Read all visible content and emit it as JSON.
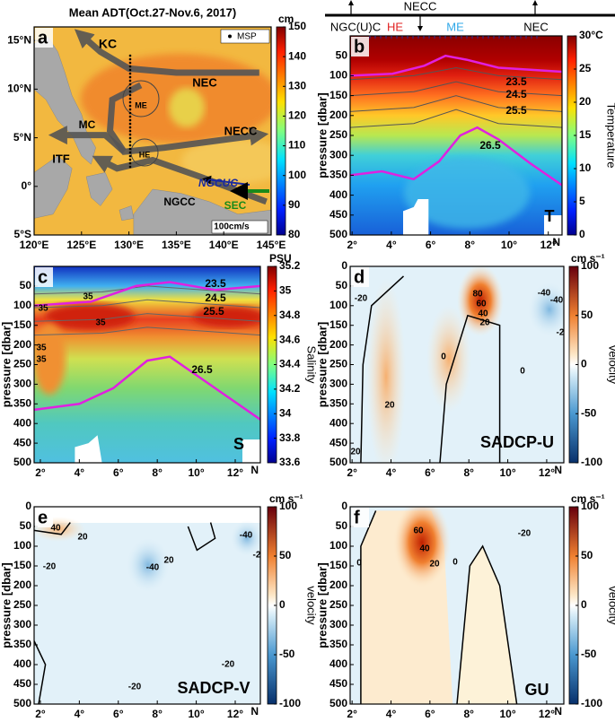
{
  "chart_data": [
    {
      "type": "map",
      "panel": "a",
      "title": "Mean ADT(Oct.27-Nov.6, 2017)",
      "xlim": [
        120,
        145
      ],
      "xticks": [
        {
          "value": 120,
          "label": "120°E"
        },
        {
          "value": 125,
          "label": "125°E"
        },
        {
          "value": 130,
          "label": "130°E"
        },
        {
          "value": 135,
          "label": "135°E"
        },
        {
          "value": 140,
          "label": "140°E"
        },
        {
          "value": 145,
          "label": "145°E"
        }
      ],
      "ylim": [
        -5,
        16.4
      ],
      "yticks": [
        {
          "value": -5,
          "label": "5°S"
        },
        {
          "value": 0,
          "label": "0°"
        },
        {
          "value": 5,
          "label": "5°N"
        },
        {
          "value": 10,
          "label": "10°N"
        },
        {
          "value": 15,
          "label": "15°N"
        }
      ],
      "colorbar": {
        "unit": "cm",
        "lim": [
          80,
          150
        ],
        "ticks": [
          80,
          90,
          100,
          110,
          120,
          130,
          140,
          150
        ]
      },
      "legend": "MSP",
      "annotations": [
        "KC",
        "NEC",
        "MC",
        "ME",
        "NECC",
        "ITF",
        "HE",
        "NGCUC",
        "SEC",
        "NGCC",
        "100cm/s"
      ]
    },
    {
      "type": "heatmap",
      "panel": "b",
      "ylabel": "pressure [dbar]",
      "xlabel": "N",
      "xlim": [
        1.9,
        12.7
      ],
      "xticks": [
        {
          "value": 2,
          "label": "2°"
        },
        {
          "value": 4,
          "label": "4°"
        },
        {
          "value": 6,
          "label": "6°"
        },
        {
          "value": 8,
          "label": "8°"
        },
        {
          "value": 10,
          "label": "10°"
        },
        {
          "value": 12,
          "label": "12°"
        }
      ],
      "ylim": [
        500,
        0
      ],
      "yticks": [
        50,
        100,
        150,
        200,
        250,
        300,
        350,
        400,
        450,
        500
      ],
      "colorbar": {
        "label": "Temperature",
        "lim": [
          0,
          30
        ],
        "ticks": [
          0,
          5,
          10,
          15,
          20,
          25,
          {
            "value": 30,
            "label": "30°C"
          }
        ]
      },
      "annotations": [
        "23.5",
        "24.5",
        "25.5",
        "26.5",
        "T"
      ],
      "top_bar": {
        "title": "NECC",
        "labels": [
          "NGC(U)C",
          "HE",
          "ME",
          "NEC"
        ]
      }
    },
    {
      "type": "heatmap",
      "panel": "c",
      "ylabel": "pressure [dbar]",
      "xlabel": "N",
      "xlim": [
        1.68,
        13.29
      ],
      "xticks": [
        {
          "value": 2,
          "label": "2°"
        },
        {
          "value": 4,
          "label": "4°"
        },
        {
          "value": 6,
          "label": "6°"
        },
        {
          "value": 8,
          "label": "8°"
        },
        {
          "value": 10,
          "label": "10°"
        },
        {
          "value": 12,
          "label": "12°"
        }
      ],
      "ylim": [
        500,
        0
      ],
      "yticks": [
        50,
        100,
        150,
        200,
        250,
        300,
        350,
        400,
        450,
        500
      ],
      "colorbar": {
        "label": "Salinity",
        "unit": "PSU",
        "lim": [
          33.6,
          35.2
        ],
        "ticks": [
          33.6,
          33.8,
          34,
          34.2,
          34.4,
          34.6,
          34.8,
          35,
          35.2
        ]
      },
      "annotations": [
        "35",
        "35",
        "35",
        "35",
        "35",
        "23.5",
        "24.5",
        "25.5",
        "26.5",
        "S"
      ]
    },
    {
      "type": "heatmap",
      "panel": "d",
      "ylabel": "pressure [dbar]",
      "xlabel": "N",
      "xlim": [
        1.9,
        12.88
      ],
      "xticks": [
        {
          "value": 2,
          "label": "2°"
        },
        {
          "value": 4,
          "label": "4°"
        },
        {
          "value": 6,
          "label": "6°"
        },
        {
          "value": 8,
          "label": "8°"
        },
        {
          "value": 10,
          "label": "10°"
        },
        {
          "value": 12,
          "label": "12°"
        }
      ],
      "ylim": [
        500,
        0
      ],
      "yticks": [
        0,
        50,
        100,
        150,
        200,
        250,
        300,
        350,
        400,
        450,
        500
      ],
      "colorbar": {
        "label": "velocity",
        "unit": "cm s⁻¹",
        "lim": [
          -100,
          100
        ],
        "ticks": [
          -100,
          -50,
          0,
          50,
          100
        ]
      },
      "annotations": [
        "-20",
        "80",
        "60",
        "40",
        "20",
        "0",
        "0",
        "20",
        "20",
        "-40",
        "-40",
        "-2",
        "SADCP-U"
      ]
    },
    {
      "type": "heatmap",
      "panel": "e",
      "ylabel": "pressure [dbar]",
      "xlabel": "N",
      "xlim": [
        1.68,
        13.29
      ],
      "xticks": [
        {
          "value": 2,
          "label": "2°"
        },
        {
          "value": 4,
          "label": "4°"
        },
        {
          "value": 6,
          "label": "6°"
        },
        {
          "value": 8,
          "label": "8°"
        },
        {
          "value": 10,
          "label": "10°"
        },
        {
          "value": 12,
          "label": "12°"
        }
      ],
      "ylim": [
        500,
        0
      ],
      "yticks": [
        0,
        50,
        100,
        150,
        200,
        250,
        300,
        350,
        400,
        450,
        500
      ],
      "colorbar": {
        "label": "velocity",
        "unit": "cm s⁻¹",
        "lim": [
          -100,
          100
        ],
        "ticks": [
          -100,
          -50,
          0,
          50,
          100
        ]
      },
      "annotations": [
        "40",
        "20",
        "-20",
        "-40",
        "20",
        "-20",
        "-20",
        "-40",
        "-2",
        "SADCP-V"
      ]
    },
    {
      "type": "heatmap",
      "panel": "f",
      "ylabel": "pressure [dbar]",
      "xlabel": "N",
      "xlim": [
        1.9,
        12.88
      ],
      "xticks": [
        {
          "value": 2,
          "label": "2°"
        },
        {
          "value": 4,
          "label": "4°"
        },
        {
          "value": 6,
          "label": "6°"
        },
        {
          "value": 8,
          "label": "8°"
        },
        {
          "value": 10,
          "label": "10°"
        },
        {
          "value": 12,
          "label": "12°"
        }
      ],
      "ylim": [
        500,
        0
      ],
      "yticks": [
        0,
        50,
        100,
        150,
        200,
        250,
        300,
        350,
        400,
        450,
        500
      ],
      "colorbar": {
        "label": "velocity",
        "unit": "cm s⁻¹",
        "lim": [
          -100,
          100
        ],
        "ticks": [
          -100,
          -50,
          0,
          50,
          100
        ]
      },
      "annotations": [
        "60",
        "40",
        "20",
        "0",
        "0",
        "-20",
        "GU"
      ]
    }
  ]
}
